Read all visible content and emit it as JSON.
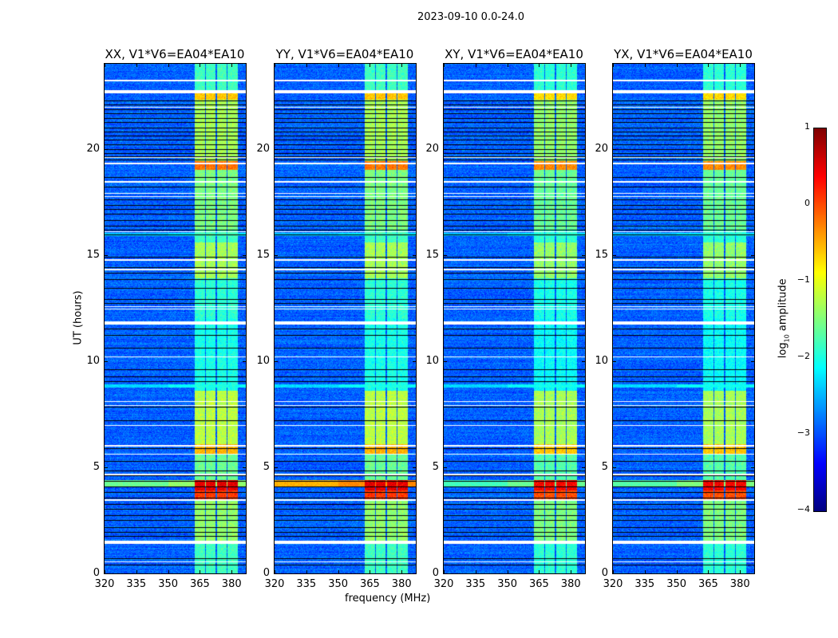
{
  "chart_data": {
    "type": "heatmap",
    "title": "2023-09-10 0.0-24.0",
    "xlabel": "frequency (MHz)",
    "ylabel": "UT (hours)",
    "xlim": [
      320,
      386.7
    ],
    "ylim": [
      0,
      24
    ],
    "xticks": [
      "320",
      "335",
      "350",
      "365",
      "380"
    ],
    "xtick_values": [
      320,
      335,
      350,
      365,
      380
    ],
    "yticks": [
      "0",
      "5",
      "10",
      "15",
      "20"
    ],
    "ytick_values": [
      0,
      5,
      10,
      15,
      20
    ],
    "colormap": "jet",
    "colorbar": {
      "label": "log10 amplitude",
      "label_main": "log",
      "label_sub": "10",
      "label_rest": " amplitude",
      "range": [
        -4,
        1
      ],
      "ticks": [
        "1",
        "0",
        "−1",
        "−2",
        "−3",
        "−4"
      ],
      "tick_values": [
        1,
        0,
        -1,
        -2,
        -3,
        -4
      ]
    },
    "panels": [
      {
        "title": "XX, V1*V6=EA04*EA10",
        "band_offset": 0.0,
        "broadband_4h_level": -1.4
      },
      {
        "title": "YY, V1*V6=EA04*EA10",
        "band_offset": 0.0,
        "broadband_4h_level": -0.3
      },
      {
        "title": "XY, V1*V6=EA04*EA10",
        "band_offset": -0.1,
        "broadband_4h_level": -1.6
      },
      {
        "title": "YX, V1*V6=EA04*EA10",
        "band_offset": -0.1,
        "broadband_4h_level": -1.5
      }
    ],
    "background_level": -2.9,
    "band_segments_mhz": [
      [
        362.3,
        367.2
      ],
      [
        367.8,
        372.3
      ],
      [
        372.8,
        377.3
      ],
      [
        377.8,
        382.6
      ]
    ],
    "band_levels": [
      {
        "start": 0,
        "end": 1.5,
        "level": -1.8
      },
      {
        "start": 1.5,
        "end": 3.4,
        "level": -1.4
      },
      {
        "start": 3.4,
        "end": 3.9,
        "level": 0.1
      },
      {
        "start": 3.9,
        "end": 4.4,
        "level": 0.5
      },
      {
        "start": 4.4,
        "end": 5.6,
        "level": -1.6
      },
      {
        "start": 5.6,
        "end": 6.1,
        "level": -0.5
      },
      {
        "start": 6.1,
        "end": 8.6,
        "level": -1.2
      },
      {
        "start": 8.6,
        "end": 12,
        "level": -2.0
      },
      {
        "start": 12,
        "end": 13.9,
        "level": -1.9
      },
      {
        "start": 13.9,
        "end": 15.6,
        "level": -1.3
      },
      {
        "start": 15.6,
        "end": 16.2,
        "level": -1.8
      },
      {
        "start": 16.2,
        "end": 19.0,
        "level": -1.5
      },
      {
        "start": 19.0,
        "end": 19.4,
        "level": -0.2
      },
      {
        "start": 19.4,
        "end": 22.3,
        "level": -1.3
      },
      {
        "start": 22.3,
        "end": 22.6,
        "level": -0.6
      },
      {
        "start": 22.6,
        "end": 24,
        "level": -1.8
      }
    ],
    "broadband_intervals": [
      {
        "start": 8.75,
        "end": 8.9,
        "level": -2.1
      },
      {
        "start": 15.9,
        "end": 16.05,
        "level": -2.2
      }
    ],
    "flagged_hours": [
      [
        23.17,
        23.25
      ],
      [
        22.6,
        22.76
      ],
      [
        21.93,
        21.98
      ],
      [
        19.58,
        19.63
      ],
      [
        19.28,
        19.33
      ],
      [
        18.42,
        18.47
      ],
      [
        17.88,
        17.93
      ],
      [
        17.73,
        17.78
      ],
      [
        16.08,
        16.13
      ],
      [
        14.73,
        14.78
      ],
      [
        14.28,
        14.33
      ],
      [
        12.53,
        12.58
      ],
      [
        12.43,
        12.48
      ],
      [
        11.7,
        11.86
      ],
      [
        10.18,
        10.23
      ],
      [
        8.08,
        8.13
      ],
      [
        7.88,
        7.93
      ],
      [
        6.93,
        6.98
      ],
      [
        5.98,
        6.03
      ],
      [
        5.58,
        5.63
      ],
      [
        4.63,
        4.68
      ],
      [
        3.43,
        3.48
      ],
      [
        1.38,
        1.55
      ],
      [
        0.53,
        0.58
      ]
    ],
    "dark_line_hours": [
      22.27,
      22.08,
      21.86,
      21.67,
      21.45,
      21.26,
      21.0,
      20.81,
      20.62,
      20.43,
      20.2,
      20.0,
      19.79,
      19.64,
      19.49,
      18.67,
      18.22,
      17.61,
      17.35,
      17.16,
      16.94,
      16.64,
      16.38,
      16.19,
      15.96,
      14.91,
      14.42,
      14.17,
      13.86,
      13.45,
      12.92,
      12.73,
      11.53,
      11.23,
      10.63,
      9.62,
      9.28,
      9.05,
      7.85,
      7.21,
      5.9,
      5.3,
      4.85,
      4.62,
      4.36,
      4.09,
      3.83,
      3.57,
      3.27,
      3.04,
      2.74,
      2.52,
      2.18,
      1.95,
      1.77,
      0.71,
      0.41
    ]
  }
}
